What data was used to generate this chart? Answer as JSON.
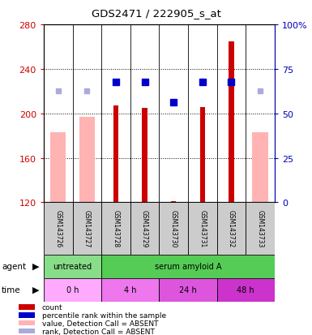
{
  "title": "GDS2471 / 222905_s_at",
  "samples": [
    "GSM143726",
    "GSM143727",
    "GSM143728",
    "GSM143729",
    "GSM143730",
    "GSM143731",
    "GSM143732",
    "GSM143733"
  ],
  "bar_values": [
    null,
    null,
    207,
    205,
    null,
    206,
    265,
    null
  ],
  "bar_color": "#cc0000",
  "absent_bar_values": [
    183,
    197,
    null,
    null,
    null,
    null,
    null,
    183
  ],
  "absent_bar_color": "#ffb3b3",
  "rank_values": [
    null,
    null,
    228,
    228,
    210,
    228,
    228,
    null
  ],
  "rank_color": "#0000cc",
  "absent_rank_values": [
    220,
    220,
    null,
    null,
    null,
    null,
    null,
    220
  ],
  "absent_rank_color": "#aaaadd",
  "small_count_value": 121,
  "small_count_index": 4,
  "ylim_left": [
    120,
    280
  ],
  "ylim_right": [
    0,
    100
  ],
  "yticks_left": [
    120,
    160,
    200,
    240,
    280
  ],
  "yticks_right": [
    0,
    25,
    50,
    75,
    100
  ],
  "ytick_labels_right": [
    "0",
    "25",
    "50",
    "75",
    "100%"
  ],
  "grid_lines": [
    160,
    200,
    240
  ],
  "agent_groups": [
    {
      "label": "untreated",
      "color": "#88dd88",
      "span": [
        0,
        2
      ]
    },
    {
      "label": "serum amyloid A",
      "color": "#55cc55",
      "span": [
        2,
        8
      ]
    }
  ],
  "time_groups": [
    {
      "label": "0 h",
      "color": "#ffaaff",
      "span": [
        0,
        2
      ]
    },
    {
      "label": "4 h",
      "color": "#ee77ee",
      "span": [
        2,
        4
      ]
    },
    {
      "label": "24 h",
      "color": "#dd55dd",
      "span": [
        4,
        6
      ]
    },
    {
      "label": "48 h",
      "color": "#cc33cc",
      "span": [
        6,
        8
      ]
    }
  ],
  "legend_items": [
    {
      "label": "count",
      "color": "#cc0000"
    },
    {
      "label": "percentile rank within the sample",
      "color": "#0000cc"
    },
    {
      "label": "value, Detection Call = ABSENT",
      "color": "#ffb3b3"
    },
    {
      "label": "rank, Detection Call = ABSENT",
      "color": "#aaaadd"
    }
  ],
  "left_ycolor": "#cc0000",
  "right_ycolor": "#0000bb",
  "absent_bar_width": 0.55,
  "present_bar_width": 0.18
}
